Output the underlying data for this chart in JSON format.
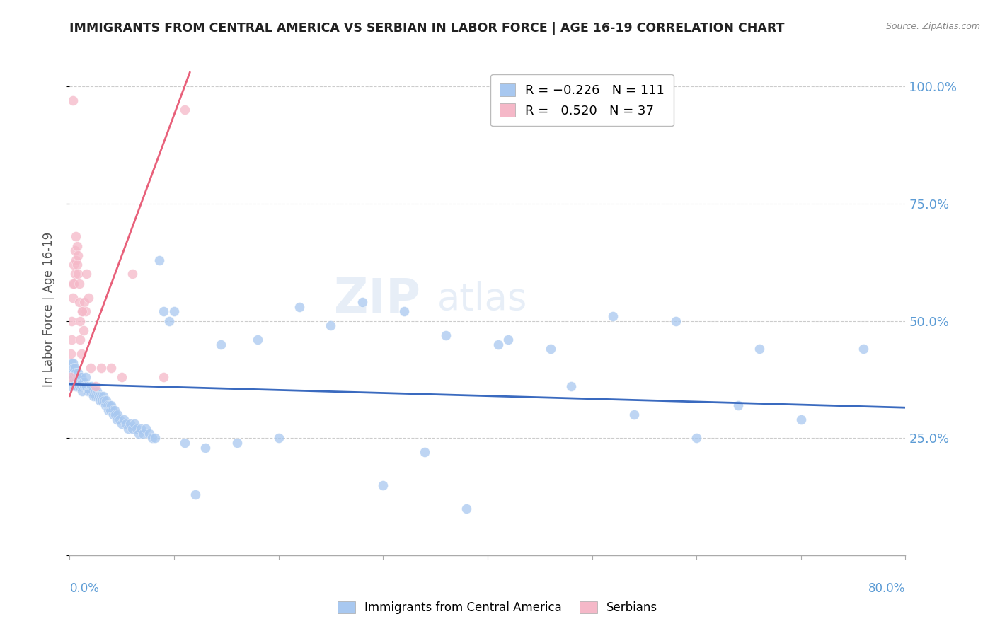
{
  "title": "IMMIGRANTS FROM CENTRAL AMERICA VS SERBIAN IN LABOR FORCE | AGE 16-19 CORRELATION CHART",
  "source": "Source: ZipAtlas.com",
  "ylabel": "In Labor Force | Age 16-19",
  "yticks": [
    0.0,
    0.25,
    0.5,
    0.75,
    1.0
  ],
  "ytick_labels_right": [
    "",
    "25.0%",
    "50.0%",
    "75.0%",
    "100.0%"
  ],
  "xmin": 0.0,
  "xmax": 0.8,
  "ymin": 0.0,
  "ymax": 1.05,
  "blue_R": -0.226,
  "blue_N": 111,
  "pink_R": 0.52,
  "pink_N": 37,
  "blue_color": "#a8c8f0",
  "pink_color": "#f5b8c8",
  "blue_line_color": "#3a6abf",
  "pink_line_color": "#e8607a",
  "watermark_zip": "ZIP",
  "watermark_atlas": "atlas",
  "legend_label_blue": "Immigrants from Central America",
  "legend_label_pink": "Serbians",
  "blue_trend_x0": 0.0,
  "blue_trend_x1": 0.8,
  "blue_trend_y0": 0.365,
  "blue_trend_y1": 0.315,
  "pink_trend_x0": 0.0,
  "pink_trend_x1": 0.115,
  "pink_trend_y0": 0.34,
  "pink_trend_y1": 1.03,
  "blue_x": [
    0.001,
    0.001,
    0.002,
    0.002,
    0.003,
    0.003,
    0.003,
    0.004,
    0.004,
    0.004,
    0.005,
    0.005,
    0.005,
    0.006,
    0.006,
    0.006,
    0.007,
    0.007,
    0.008,
    0.008,
    0.008,
    0.009,
    0.009,
    0.01,
    0.01,
    0.011,
    0.011,
    0.012,
    0.012,
    0.013,
    0.014,
    0.015,
    0.015,
    0.016,
    0.017,
    0.018,
    0.019,
    0.02,
    0.021,
    0.022,
    0.023,
    0.024,
    0.025,
    0.026,
    0.027,
    0.028,
    0.029,
    0.03,
    0.031,
    0.032,
    0.033,
    0.034,
    0.035,
    0.036,
    0.037,
    0.038,
    0.039,
    0.04,
    0.041,
    0.042,
    0.043,
    0.044,
    0.045,
    0.046,
    0.048,
    0.05,
    0.052,
    0.054,
    0.056,
    0.058,
    0.06,
    0.062,
    0.064,
    0.066,
    0.068,
    0.07,
    0.073,
    0.076,
    0.079,
    0.082,
    0.086,
    0.09,
    0.095,
    0.1,
    0.11,
    0.12,
    0.13,
    0.145,
    0.16,
    0.18,
    0.2,
    0.22,
    0.25,
    0.28,
    0.32,
    0.36,
    0.41,
    0.46,
    0.52,
    0.58,
    0.64,
    0.7,
    0.76,
    0.42,
    0.48,
    0.38,
    0.34,
    0.3,
    0.54,
    0.6,
    0.66
  ],
  "blue_y": [
    0.36,
    0.39,
    0.38,
    0.41,
    0.37,
    0.39,
    0.41,
    0.38,
    0.4,
    0.37,
    0.39,
    0.37,
    0.4,
    0.38,
    0.36,
    0.39,
    0.38,
    0.36,
    0.38,
    0.37,
    0.39,
    0.37,
    0.36,
    0.37,
    0.38,
    0.36,
    0.38,
    0.37,
    0.35,
    0.37,
    0.36,
    0.36,
    0.38,
    0.36,
    0.35,
    0.36,
    0.35,
    0.35,
    0.36,
    0.35,
    0.34,
    0.35,
    0.34,
    0.35,
    0.34,
    0.34,
    0.33,
    0.34,
    0.33,
    0.34,
    0.33,
    0.32,
    0.33,
    0.32,
    0.31,
    0.32,
    0.31,
    0.32,
    0.31,
    0.3,
    0.31,
    0.3,
    0.29,
    0.3,
    0.29,
    0.28,
    0.29,
    0.28,
    0.27,
    0.28,
    0.27,
    0.28,
    0.27,
    0.26,
    0.27,
    0.26,
    0.27,
    0.26,
    0.25,
    0.25,
    0.63,
    0.52,
    0.5,
    0.52,
    0.24,
    0.13,
    0.23,
    0.45,
    0.24,
    0.46,
    0.25,
    0.53,
    0.49,
    0.54,
    0.52,
    0.47,
    0.45,
    0.44,
    0.51,
    0.5,
    0.32,
    0.29,
    0.44,
    0.46,
    0.36,
    0.1,
    0.22,
    0.15,
    0.3,
    0.25,
    0.44
  ],
  "pink_x": [
    0.001,
    0.001,
    0.002,
    0.002,
    0.003,
    0.003,
    0.004,
    0.004,
    0.005,
    0.005,
    0.006,
    0.006,
    0.007,
    0.007,
    0.008,
    0.008,
    0.009,
    0.009,
    0.01,
    0.01,
    0.011,
    0.012,
    0.013,
    0.014,
    0.016,
    0.018,
    0.02,
    0.025,
    0.03,
    0.04,
    0.06,
    0.09,
    0.11,
    0.05,
    0.015,
    0.003,
    0.012
  ],
  "pink_y": [
    0.43,
    0.38,
    0.5,
    0.46,
    0.58,
    0.55,
    0.62,
    0.58,
    0.65,
    0.6,
    0.68,
    0.63,
    0.66,
    0.62,
    0.64,
    0.6,
    0.58,
    0.54,
    0.5,
    0.46,
    0.43,
    0.52,
    0.48,
    0.54,
    0.6,
    0.55,
    0.4,
    0.36,
    0.4,
    0.4,
    0.6,
    0.38,
    0.95,
    0.38,
    0.52,
    0.97,
    0.52
  ],
  "xtick_positions": [
    0.0,
    0.1,
    0.2,
    0.3,
    0.4,
    0.5,
    0.6,
    0.7,
    0.8
  ]
}
